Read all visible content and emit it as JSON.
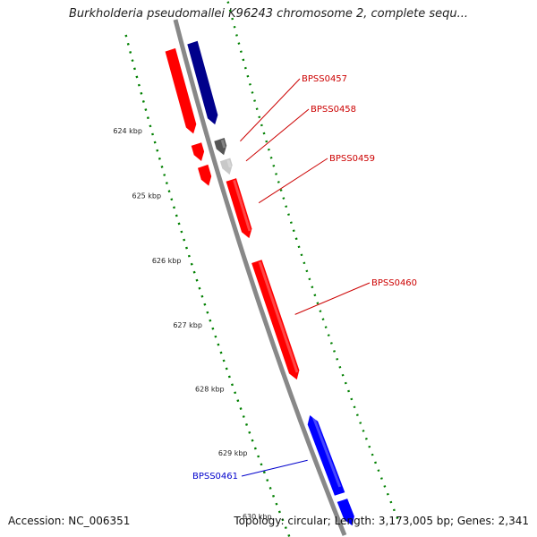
{
  "title": "Burkholderia pseudomallei K96243 chromosome 2, complete sequ...",
  "footer": {
    "accession": "Accession: NC_006351",
    "summary": "Topology: circular; Length: 3,173,005 bp; Genes: 2,341"
  },
  "colors": {
    "forward_strand": "#ff0000",
    "reverse_strand": "#0000ff",
    "reverse_dark": "#00008b",
    "gray_dark": "#555555",
    "gray_light": "#c8c8c8",
    "backbone": "#888888",
    "tick": "#008000"
  },
  "ruler": {
    "ticks": [
      {
        "kbp": 624,
        "label": "624 kbp"
      },
      {
        "kbp": 625,
        "label": "625 kbp"
      },
      {
        "kbp": 626,
        "label": "626 kbp"
      },
      {
        "kbp": 627,
        "label": "627 kbp"
      },
      {
        "kbp": 628,
        "label": "628 kbp"
      },
      {
        "kbp": 629,
        "label": "629 kbp"
      },
      {
        "kbp": 630,
        "label": "630 kbp"
      }
    ]
  },
  "genes": [
    {
      "name": "BPSS0457",
      "labeled": true,
      "start_kbp": 624.48,
      "end_kbp": 624.72,
      "strand": "+",
      "color": "gray_dark"
    },
    {
      "name": "BPSS0458",
      "labeled": true,
      "start_kbp": 624.79,
      "end_kbp": 625.02,
      "strand": "+",
      "color": "gray_light"
    },
    {
      "name": "BPSS0459",
      "labeled": true,
      "start_kbp": 625.1,
      "end_kbp": 626.0,
      "strand": "+",
      "color": "forward_strand"
    },
    {
      "name": "BPSS0460",
      "labeled": true,
      "start_kbp": 626.36,
      "end_kbp": 628.2,
      "strand": "+",
      "color": "forward_strand"
    },
    {
      "name": "BPSS0461",
      "labeled": true,
      "start_kbp": 628.76,
      "end_kbp": 630.0,
      "strand": "-",
      "color": "reverse_strand"
    }
  ],
  "features": [
    {
      "ring": "inner_reverse",
      "start_kbp": 623.0,
      "end_kbp": 624.25,
      "color": "reverse_dark"
    },
    {
      "ring": "inner_forward",
      "start_kbp": 623.0,
      "end_kbp": 624.28,
      "color": "forward_strand"
    },
    {
      "ring": "inner_forward",
      "start_kbp": 624.44,
      "end_kbp": 624.7,
      "color": "forward_strand"
    },
    {
      "ring": "inner_forward",
      "start_kbp": 624.78,
      "end_kbp": 625.08,
      "color": "forward_strand"
    },
    {
      "ring": "inner_reverse",
      "start_kbp": 630.1,
      "end_kbp": 630.5,
      "color": "reverse_strand"
    }
  ]
}
